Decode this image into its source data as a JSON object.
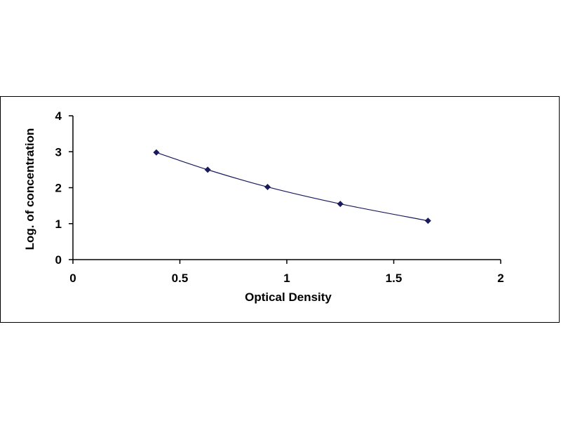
{
  "chart_data": {
    "type": "scatter",
    "title": "",
    "xlabel": "Optical Density",
    "ylabel": "Log. of concentration",
    "xlim": [
      0,
      2
    ],
    "ylim": [
      0,
      4
    ],
    "x_ticks": [
      "0",
      "0.5",
      "1",
      "1.5",
      "2"
    ],
    "y_ticks": [
      "0",
      "1",
      "2",
      "3",
      "4"
    ],
    "series": [
      {
        "x": [
          0.39,
          0.63,
          0.91,
          1.25,
          1.66
        ],
        "y": [
          2.98,
          2.5,
          2.02,
          1.55,
          1.08
        ],
        "marker": "diamond",
        "trendline": "smooth curve",
        "color": "#1a1a5e"
      }
    ],
    "grid": false,
    "legend": "none"
  }
}
